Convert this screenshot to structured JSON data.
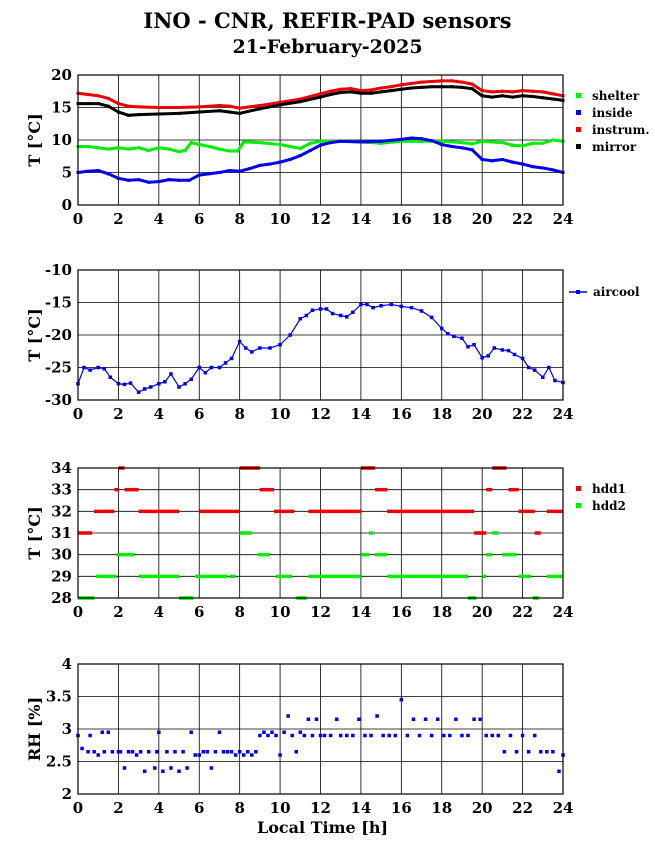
{
  "title": "INO - CNR, REFIR-PAD sensors",
  "subtitle": "21-February-2025",
  "xlabel": "Local Time [h]",
  "chart_data": [
    {
      "type": "scatter",
      "ylabel": "T [°C]",
      "xlim": [
        0,
        24
      ],
      "ylim": [
        0,
        20
      ],
      "xticks": [
        0,
        2,
        4,
        6,
        8,
        10,
        12,
        14,
        16,
        18,
        20,
        22,
        24
      ],
      "yticks": [
        0,
        5,
        10,
        15,
        20
      ],
      "grid": true,
      "legend": "right",
      "series": [
        {
          "name": "shelter",
          "color": "#00ee00",
          "x": [
            0,
            0.5,
            1,
            1.5,
            2,
            2.5,
            3,
            3.5,
            4,
            4.5,
            5,
            5.3,
            5.6,
            6,
            6.5,
            7,
            7.5,
            7.9,
            8.2,
            9,
            10,
            10.5,
            11,
            11.5,
            12,
            13,
            14,
            15,
            16,
            17,
            18,
            19,
            19.5,
            20,
            20.5,
            21,
            21.5,
            22,
            22.5,
            23,
            23.5,
            24
          ],
          "y": [
            9,
            9,
            8.8,
            8.6,
            8.8,
            8.6,
            8.8,
            8.4,
            8.8,
            8.6,
            8.2,
            8.4,
            9.6,
            9.3,
            9,
            8.6,
            8.3,
            8.3,
            9.7,
            9.6,
            9.3,
            9,
            8.7,
            9.5,
            9.8,
            9.8,
            9.7,
            9.5,
            9.8,
            9.8,
            9.8,
            9.6,
            9.4,
            9.8,
            9.7,
            9.6,
            9.2,
            9.1,
            9.5,
            9.5,
            10,
            9.8
          ]
        },
        {
          "name": "inside",
          "color": "#0000ee",
          "x": [
            0,
            0.5,
            1,
            1.5,
            2,
            2.5,
            3,
            3.5,
            4,
            4.5,
            5,
            5.5,
            6,
            6.5,
            7,
            7.5,
            8,
            8.5,
            9,
            9.5,
            10,
            10.5,
            11,
            11.5,
            12,
            12.5,
            13,
            14,
            15,
            16,
            16.5,
            17,
            17.5,
            18,
            18.5,
            19,
            19.5,
            20,
            20.5,
            21,
            21.5,
            22,
            22.5,
            23,
            23.5,
            24
          ],
          "y": [
            5,
            5.2,
            5.3,
            4.8,
            4.1,
            3.8,
            3.9,
            3.5,
            3.6,
            3.9,
            3.8,
            3.8,
            4.6,
            4.8,
            5,
            5.3,
            5.2,
            5.6,
            6.1,
            6.3,
            6.6,
            7,
            7.6,
            8.4,
            9.2,
            9.6,
            9.8,
            9.7,
            9.8,
            10.1,
            10.3,
            10.2,
            9.9,
            9.3,
            9,
            8.8,
            8.5,
            7,
            6.8,
            7,
            6.6,
            6.3,
            5.9,
            5.7,
            5.4,
            5
          ]
        },
        {
          "name": "instrum.",
          "color": "#ee0000",
          "x": [
            0,
            0.5,
            1,
            1.5,
            2,
            2.5,
            3,
            4,
            5,
            6,
            7,
            7.5,
            8,
            9,
            10,
            11,
            12,
            12.5,
            13,
            13.5,
            14,
            14.5,
            15,
            15.5,
            16,
            16.5,
            17,
            17.5,
            18,
            18.5,
            19,
            19.5,
            20,
            20.5,
            21,
            21.5,
            22,
            22.5,
            23,
            23.5,
            24
          ],
          "y": [
            17.2,
            17,
            16.8,
            16.4,
            15.6,
            15.2,
            15.1,
            15,
            15,
            15.1,
            15.3,
            15.2,
            14.9,
            15.3,
            15.8,
            16.3,
            17.1,
            17.5,
            17.8,
            17.9,
            17.6,
            17.7,
            18,
            18.2,
            18.5,
            18.7,
            18.9,
            19,
            19.1,
            19.1,
            18.9,
            18.6,
            17.6,
            17.4,
            17.5,
            17.4,
            17.6,
            17.5,
            17.4,
            17.1,
            16.8
          ]
        },
        {
          "name": "mirror",
          "color": "#000000",
          "x": [
            0,
            0.5,
            1,
            1.5,
            2,
            2.5,
            3,
            4,
            5,
            6,
            7,
            7.5,
            8,
            9,
            10,
            11,
            12,
            12.5,
            13,
            13.5,
            14,
            14.5,
            15,
            15.5,
            16,
            16.5,
            17,
            17.5,
            18,
            18.5,
            19,
            19.5,
            20,
            20.5,
            21,
            21.5,
            22,
            22.5,
            23,
            23.5,
            24
          ],
          "y": [
            15.6,
            15.6,
            15.6,
            15.2,
            14.3,
            13.8,
            13.9,
            14,
            14.1,
            14.3,
            14.5,
            14.3,
            14.1,
            14.8,
            15.4,
            15.9,
            16.6,
            17,
            17.3,
            17.4,
            17.2,
            17.2,
            17.4,
            17.6,
            17.8,
            18,
            18.1,
            18.2,
            18.2,
            18.2,
            18.1,
            17.9,
            16.8,
            16.6,
            16.8,
            16.6,
            16.8,
            16.7,
            16.5,
            16.3,
            16.1
          ]
        }
      ]
    },
    {
      "type": "line",
      "ylabel": "T [°C]",
      "xlim": [
        0,
        24
      ],
      "ylim": [
        -30,
        -10
      ],
      "xticks": [
        0,
        2,
        4,
        6,
        8,
        10,
        12,
        14,
        16,
        18,
        20,
        22,
        24
      ],
      "yticks": [
        -30,
        -25,
        -20,
        -15,
        -10
      ],
      "grid": true,
      "legend": "right",
      "series": [
        {
          "name": "aircool",
          "color": "#0000ee",
          "x": [
            0,
            0.3,
            0.6,
            1,
            1.3,
            1.6,
            2,
            2.3,
            2.6,
            3,
            3.3,
            3.6,
            4,
            4.3,
            4.6,
            5,
            5.3,
            5.6,
            6,
            6.3,
            6.6,
            7,
            7.3,
            7.6,
            8,
            8.3,
            8.6,
            9,
            9.5,
            10,
            10.5,
            11,
            11.3,
            11.6,
            12,
            12.3,
            12.6,
            13,
            13.3,
            13.6,
            14,
            14.3,
            14.6,
            15,
            15.5,
            16,
            16.5,
            17,
            17.5,
            18,
            18.3,
            18.6,
            19,
            19.3,
            19.6,
            20,
            20.3,
            20.6,
            21,
            21.3,
            21.6,
            22,
            22.3,
            22.6,
            23,
            23.3,
            23.6,
            24
          ],
          "y": [
            -27.5,
            -25,
            -25.4,
            -25,
            -25.2,
            -26.5,
            -27.5,
            -27.6,
            -27.4,
            -28.8,
            -28.3,
            -28,
            -27.5,
            -27.2,
            -26,
            -28,
            -27.5,
            -26.8,
            -25,
            -25.8,
            -25,
            -25,
            -24.3,
            -23.6,
            -21,
            -22,
            -22.6,
            -22,
            -22,
            -21.5,
            -20,
            -17.5,
            -17,
            -16.2,
            -16,
            -16,
            -16.7,
            -17,
            -17.2,
            -16.5,
            -15.3,
            -15.3,
            -15.8,
            -15.5,
            -15.3,
            -15.6,
            -15.8,
            -16.3,
            -17.3,
            -19,
            -19.8,
            -20.2,
            -20.5,
            -21.8,
            -21.5,
            -23.5,
            -23.2,
            -22,
            -22.3,
            -22.4,
            -23,
            -23.6,
            -25,
            -25.4,
            -26.5,
            -25,
            -27,
            -27.3
          ]
        }
      ]
    },
    {
      "type": "scatter",
      "ylabel": "T [°C]",
      "xlim": [
        0,
        24
      ],
      "ylim": [
        28,
        34
      ],
      "xticks": [
        0,
        2,
        4,
        6,
        8,
        10,
        12,
        14,
        16,
        18,
        20,
        22,
        24
      ],
      "yticks": [
        28,
        29,
        30,
        31,
        32,
        33,
        34
      ],
      "grid": true,
      "legend": "right",
      "series": [
        {
          "name": "hdd1",
          "color": "#ee0000",
          "segments": [
            [
              0,
              0.7,
              31
            ],
            [
              0.8,
              1.8,
              32
            ],
            [
              1.8,
              2,
              33
            ],
            [
              2,
              2.3,
              34
            ],
            [
              2.3,
              3,
              33
            ],
            [
              3,
              5,
              32
            ],
            [
              6,
              8,
              32
            ],
            [
              8,
              9,
              34
            ],
            [
              9,
              9.7,
              33
            ],
            [
              9.7,
              10.7,
              32
            ],
            [
              11.4,
              14,
              32
            ],
            [
              14,
              14.7,
              34
            ],
            [
              14.7,
              15.3,
              33
            ],
            [
              15.3,
              19.6,
              32
            ],
            [
              19.6,
              20.2,
              31
            ],
            [
              20.2,
              20.5,
              33
            ],
            [
              20.5,
              21.2,
              34
            ],
            [
              21.3,
              21.8,
              33
            ],
            [
              21.8,
              22.6,
              32
            ],
            [
              22.6,
              22.9,
              31
            ],
            [
              23.2,
              24,
              32
            ]
          ]
        },
        {
          "name": "hdd2",
          "color": "#00ee00",
          "segments": [
            [
              0,
              0.8,
              28
            ],
            [
              0.9,
              1.9,
              29
            ],
            [
              1.9,
              2.8,
              30
            ],
            [
              3,
              5,
              29
            ],
            [
              5,
              5.7,
              28
            ],
            [
              5.8,
              7.4,
              29
            ],
            [
              7.5,
              7.8,
              29
            ],
            [
              8,
              8.6,
              31
            ],
            [
              8.9,
              9.5,
              30
            ],
            [
              9.8,
              10.6,
              29
            ],
            [
              10.8,
              11.3,
              28
            ],
            [
              11.4,
              14,
              29
            ],
            [
              14,
              14.4,
              30
            ],
            [
              14.4,
              14.6,
              31
            ],
            [
              14.7,
              15.3,
              30
            ],
            [
              15.3,
              19.3,
              29
            ],
            [
              19.3,
              19.7,
              28
            ],
            [
              20,
              20.2,
              29
            ],
            [
              20.2,
              20.5,
              30
            ],
            [
              20.5,
              20.8,
              31
            ],
            [
              21,
              21.7,
              30
            ],
            [
              21.8,
              22.4,
              29
            ],
            [
              22.5,
              22.8,
              28
            ],
            [
              23.2,
              24,
              29
            ]
          ]
        }
      ]
    },
    {
      "type": "scatter",
      "ylabel": "RH [%]",
      "xlim": [
        0,
        24
      ],
      "ylim": [
        2,
        4
      ],
      "xticks": [
        0,
        2,
        4,
        6,
        8,
        10,
        12,
        14,
        16,
        18,
        20,
        22,
        24
      ],
      "yticks": [
        "2",
        "2.5",
        "3",
        "3.5",
        "4"
      ],
      "grid": true,
      "legend": "none",
      "series": [
        {
          "name": "",
          "color": "#0000ee",
          "x": [
            0,
            0.2,
            0.5,
            0.6,
            0.8,
            1,
            1.2,
            1.3,
            1.5,
            1.7,
            2,
            2.1,
            2.3,
            2.5,
            2.7,
            2.9,
            3.1,
            3.3,
            3.5,
            3.8,
            3.9,
            4,
            4.2,
            4.4,
            4.6,
            4.8,
            5,
            5.2,
            5.4,
            5.6,
            5.8,
            6,
            6.2,
            6.4,
            6.6,
            6.8,
            7,
            7.2,
            7.4,
            7.6,
            7.8,
            8,
            8.2,
            8.4,
            8.6,
            8.8,
            9,
            9.2,
            9.4,
            9.6,
            9.8,
            10,
            10.2,
            10.4,
            10.6,
            10.8,
            11,
            11.2,
            11.4,
            11.6,
            11.8,
            12,
            12.2,
            12.5,
            12.8,
            13,
            13.3,
            13.6,
            13.9,
            14.2,
            14.5,
            14.8,
            15.1,
            15.4,
            15.7,
            16,
            16.3,
            16.6,
            16.9,
            17.2,
            17.5,
            17.8,
            18.1,
            18.4,
            18.7,
            19,
            19.3,
            19.6,
            19.9,
            20.2,
            20.5,
            20.8,
            21.1,
            21.4,
            21.7,
            22,
            22.3,
            22.6,
            22.9,
            23.2,
            23.5,
            23.8,
            24
          ],
          "y": [
            2.9,
            2.7,
            2.65,
            2.9,
            2.65,
            2.6,
            2.95,
            2.65,
            2.95,
            2.65,
            2.65,
            2.65,
            2.4,
            2.65,
            2.65,
            2.6,
            2.65,
            2.35,
            2.65,
            2.4,
            2.65,
            2.95,
            2.35,
            2.65,
            2.4,
            2.65,
            2.35,
            2.65,
            2.4,
            2.95,
            2.6,
            2.6,
            2.65,
            2.65,
            2.4,
            2.65,
            2.95,
            2.65,
            2.65,
            2.65,
            2.6,
            2.65,
            2.6,
            2.65,
            2.6,
            2.65,
            2.9,
            2.95,
            2.9,
            2.95,
            2.9,
            2.6,
            2.95,
            3.2,
            2.9,
            2.65,
            2.95,
            2.9,
            3.15,
            2.9,
            3.15,
            2.9,
            2.9,
            2.9,
            3.15,
            2.9,
            2.9,
            2.9,
            3.15,
            2.9,
            2.9,
            3.2,
            2.9,
            2.9,
            2.9,
            3.45,
            2.9,
            3.15,
            2.9,
            3.15,
            2.9,
            3.15,
            2.9,
            2.9,
            3.15,
            2.9,
            2.9,
            3.15,
            3.15,
            2.9,
            2.9,
            2.9,
            2.65,
            2.9,
            2.65,
            2.9,
            2.65,
            2.9,
            2.65,
            2.65,
            2.65,
            2.35,
            2.6
          ]
        }
      ]
    }
  ]
}
